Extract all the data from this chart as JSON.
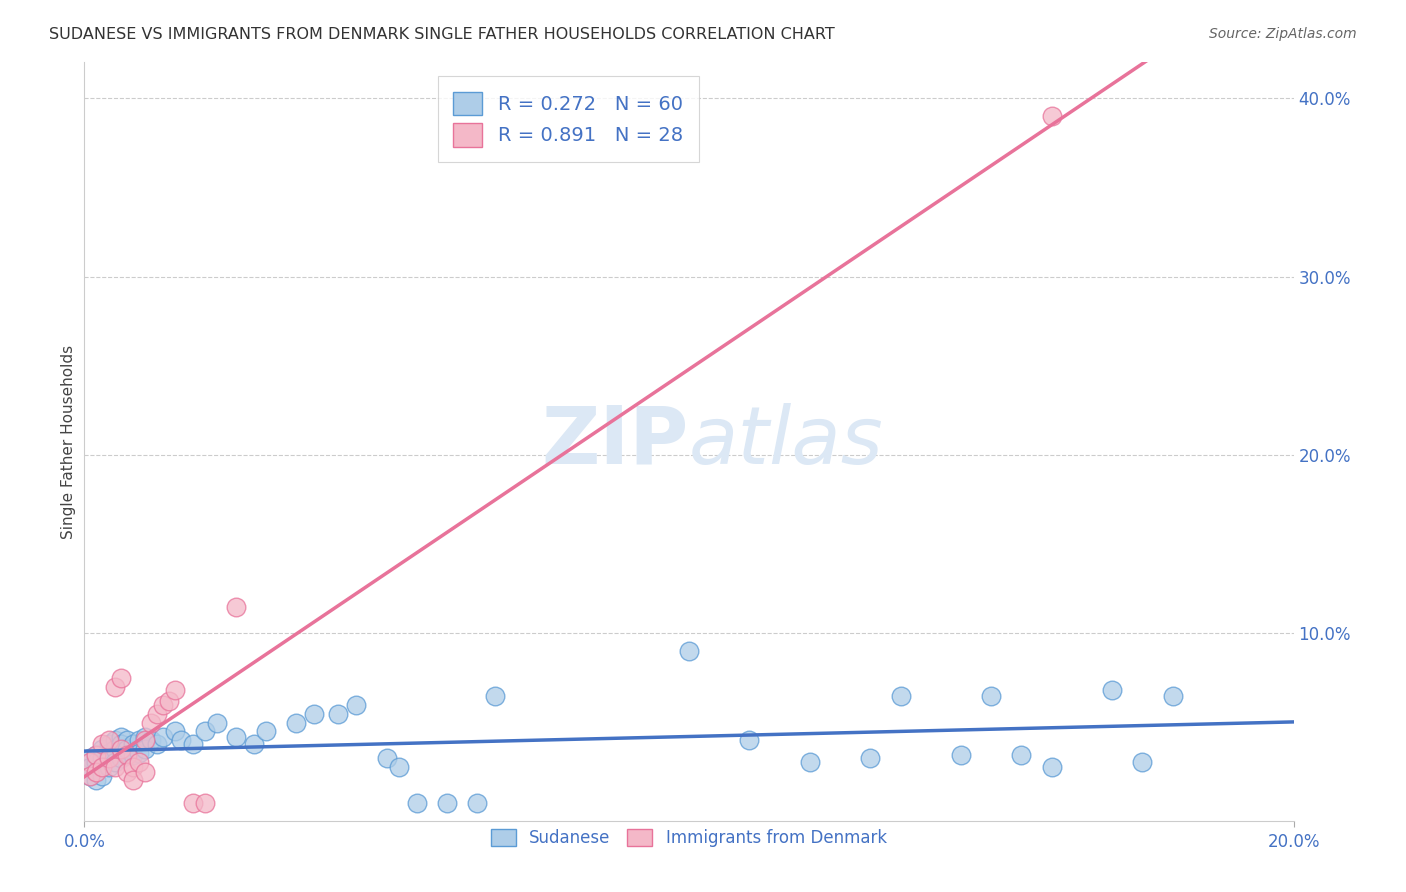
{
  "title": "SUDANESE VS IMMIGRANTS FROM DENMARK SINGLE FATHER HOUSEHOLDS CORRELATION CHART",
  "source": "Source: ZipAtlas.com",
  "ylabel": "Single Father Households",
  "xlabel": "",
  "xlim": [
    0.0,
    0.2
  ],
  "ylim": [
    -0.005,
    0.42
  ],
  "xticks": [
    0.0,
    0.2
  ],
  "yticks": [
    0.1,
    0.2,
    0.3,
    0.4
  ],
  "xtick_labels": [
    "0.0%",
    "20.0%"
  ],
  "ytick_labels": [
    "10.0%",
    "20.0%",
    "30.0%",
    "40.0%"
  ],
  "series_blue": {
    "name": "Sudanese",
    "color": "#aecde8",
    "edge_color": "#5b9bd5",
    "x": [
      0.001,
      0.001,
      0.001,
      0.002,
      0.002,
      0.002,
      0.002,
      0.003,
      0.003,
      0.003,
      0.004,
      0.004,
      0.004,
      0.005,
      0.005,
      0.005,
      0.006,
      0.006,
      0.006,
      0.007,
      0.007,
      0.008,
      0.008,
      0.009,
      0.009,
      0.01,
      0.01,
      0.011,
      0.012,
      0.013,
      0.015,
      0.016,
      0.018,
      0.02,
      0.022,
      0.025,
      0.028,
      0.03,
      0.035,
      0.038,
      0.042,
      0.045,
      0.05,
      0.052,
      0.055,
      0.06,
      0.065,
      0.068,
      0.1,
      0.11,
      0.12,
      0.13,
      0.135,
      0.145,
      0.15,
      0.155,
      0.16,
      0.17,
      0.175,
      0.18
    ],
    "y": [
      0.03,
      0.025,
      0.02,
      0.032,
      0.028,
      0.022,
      0.018,
      0.035,
      0.03,
      0.02,
      0.038,
      0.033,
      0.025,
      0.04,
      0.035,
      0.028,
      0.042,
      0.038,
      0.03,
      0.04,
      0.035,
      0.038,
      0.032,
      0.04,
      0.033,
      0.042,
      0.035,
      0.04,
      0.038,
      0.042,
      0.045,
      0.04,
      0.038,
      0.045,
      0.05,
      0.042,
      0.038,
      0.045,
      0.05,
      0.055,
      0.055,
      0.06,
      0.03,
      0.025,
      0.005,
      0.005,
      0.005,
      0.065,
      0.09,
      0.04,
      0.028,
      0.03,
      0.065,
      0.032,
      0.065,
      0.032,
      0.025,
      0.068,
      0.028,
      0.065
    ]
  },
  "series_pink": {
    "name": "Immigrants from Denmark",
    "color": "#f4b8c8",
    "edge_color": "#e8739a",
    "x": [
      0.001,
      0.001,
      0.002,
      0.002,
      0.003,
      0.003,
      0.004,
      0.004,
      0.005,
      0.005,
      0.006,
      0.006,
      0.007,
      0.007,
      0.008,
      0.008,
      0.009,
      0.01,
      0.01,
      0.011,
      0.012,
      0.013,
      0.014,
      0.015,
      0.018,
      0.02,
      0.025,
      0.16
    ],
    "y": [
      0.028,
      0.02,
      0.032,
      0.022,
      0.038,
      0.025,
      0.04,
      0.03,
      0.07,
      0.025,
      0.075,
      0.035,
      0.032,
      0.022,
      0.025,
      0.018,
      0.028,
      0.04,
      0.022,
      0.05,
      0.055,
      0.06,
      0.062,
      0.068,
      0.005,
      0.005,
      0.115,
      0.39
    ]
  },
  "blue_line_slope": 0.272,
  "pink_line_slope": 0.891,
  "title_color": "#333333",
  "title_fontsize": 11.5,
  "source_color": "#666666",
  "source_fontsize": 10,
  "ylabel_color": "#444444",
  "tick_label_color": "#4472c4",
  "watermark_color": "#dce8f5",
  "background_color": "#ffffff",
  "grid_color": "#cccccc",
  "legend_text_color": "#4472c4",
  "blue_line_color": "#4472c4",
  "pink_line_color": "#e8739a"
}
